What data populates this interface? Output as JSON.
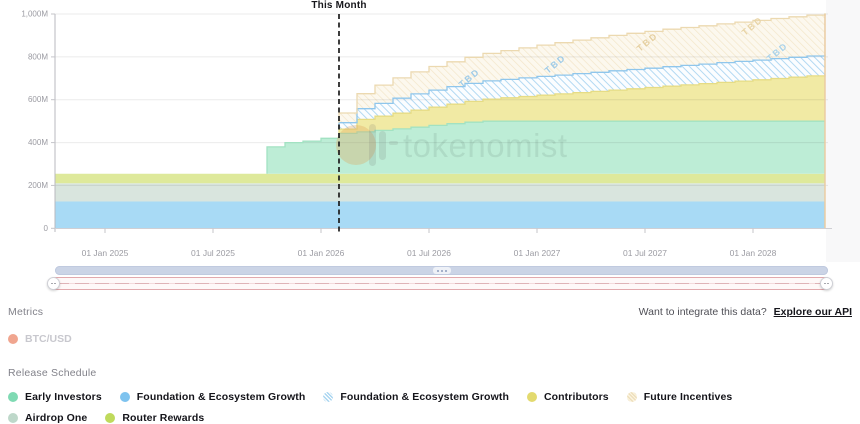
{
  "chart": {
    "this_month_label": "This Month",
    "watermark": "tokenomist",
    "y_ticks": [
      {
        "value": 1000,
        "label": "1,000M"
      },
      {
        "value": 800,
        "label": "800M"
      },
      {
        "value": 600,
        "label": "600M"
      },
      {
        "value": 400,
        "label": "400M"
      },
      {
        "value": 200,
        "label": "200M"
      },
      {
        "value": 0,
        "label": "0"
      }
    ],
    "x_ticks": [
      {
        "label": "01 Jan 2025",
        "month_index": 3
      },
      {
        "label": "01 Jul 2025",
        "month_index": 9
      },
      {
        "label": "01 Jan 2026",
        "month_index": 15
      },
      {
        "label": "01 Jul 2026",
        "month_index": 21
      },
      {
        "label": "01 Jan 2027",
        "month_index": 27
      },
      {
        "label": "01 Jul 2027",
        "month_index": 33
      },
      {
        "label": "01 Jan 2028",
        "month_index": 39
      }
    ]
  },
  "chart_data": {
    "type": "area",
    "stacked": true,
    "interpolation": "step-after",
    "title": "Release Schedule",
    "x_unit": "month",
    "x_start": "2024-10",
    "x_end": "2028-05",
    "this_month": "2026-02",
    "this_month_index": 16,
    "ylim": [
      0,
      1000
    ],
    "y_unit": "M tokens",
    "grid": true,
    "annotation_text": "TBD",
    "series": [
      {
        "name": "Foundation & Ecosystem Growth",
        "style": "solid",
        "fill": "#a8daf5",
        "stroke": null,
        "values": [
          125,
          125,
          125,
          125,
          125,
          125,
          125,
          125,
          125,
          125,
          125,
          125,
          125,
          125,
          125,
          125,
          125,
          125,
          125,
          125,
          125,
          125,
          125,
          125,
          125,
          125,
          125,
          125,
          125,
          125,
          125,
          125,
          125,
          125,
          125,
          125,
          125,
          125,
          125,
          125,
          125,
          125,
          125,
          125
        ]
      },
      {
        "name": "Airdrop One",
        "style": "solid",
        "fill": "#d9e5de",
        "stroke": null,
        "values": [
          85,
          85,
          85,
          85,
          85,
          85,
          85,
          85,
          85,
          85,
          85,
          85,
          85,
          85,
          85,
          85,
          85,
          85,
          85,
          85,
          85,
          85,
          85,
          85,
          85,
          85,
          85,
          85,
          85,
          85,
          85,
          85,
          85,
          85,
          85,
          85,
          85,
          85,
          85,
          85,
          85,
          85,
          85,
          85
        ]
      },
      {
        "name": "Router Rewards",
        "style": "solid",
        "fill": "#dee99b",
        "stroke": null,
        "values": [
          45,
          45,
          45,
          45,
          45,
          45,
          45,
          45,
          45,
          45,
          45,
          45,
          45,
          45,
          45,
          45,
          45,
          45,
          45,
          45,
          45,
          45,
          45,
          45,
          45,
          45,
          45,
          45,
          45,
          45,
          45,
          45,
          45,
          45,
          45,
          45,
          45,
          45,
          45,
          45,
          45,
          45,
          45,
          45
        ]
      },
      {
        "name": "Early Investors",
        "style": "solid",
        "fill": "#bdedd6",
        "stroke": "#a2e2c2",
        "values": [
          0,
          0,
          0,
          0,
          0,
          0,
          0,
          0,
          0,
          0,
          0,
          0,
          125,
          145,
          152,
          165,
          188,
          195,
          202,
          209,
          217,
          225,
          233,
          240,
          245,
          245,
          245,
          245,
          245,
          245,
          245,
          245,
          245,
          245,
          245,
          245,
          245,
          245,
          245,
          245,
          245,
          245,
          245,
          245
        ]
      },
      {
        "name": "Contributors",
        "style": "solid",
        "fill": "#f1eaa4",
        "stroke": "#e6dc85",
        "values": [
          0,
          0,
          0,
          0,
          0,
          0,
          0,
          0,
          0,
          0,
          0,
          0,
          0,
          0,
          0,
          0,
          20,
          58,
          66,
          73,
          79,
          85,
          91,
          97,
          103,
          109,
          115,
          121,
          127,
          133,
          139,
          145,
          151,
          157,
          163,
          169,
          175,
          181,
          187,
          193,
          199,
          205,
          211,
          217
        ]
      },
      {
        "name": "Foundation & Ecosystem Growth",
        "style": "hatched",
        "annotation": "TBD",
        "fill": "pattern-blue",
        "stroke": "#8fc6ec",
        "values": [
          0,
          0,
          0,
          0,
          0,
          0,
          0,
          0,
          0,
          0,
          0,
          0,
          0,
          0,
          0,
          0,
          30,
          50,
          60,
          70,
          76,
          80,
          82,
          84,
          85,
          86,
          87,
          88,
          88,
          89,
          89,
          90,
          90,
          90,
          91,
          91,
          91,
          92,
          92,
          92,
          93,
          93,
          93,
          94
        ]
      },
      {
        "name": "Future Incentives",
        "style": "hatched",
        "annotation": "TBD",
        "fill": "pattern-cream",
        "stroke": "#ecd9b0",
        "values": [
          0,
          0,
          0,
          0,
          0,
          0,
          0,
          0,
          0,
          0,
          0,
          0,
          0,
          0,
          0,
          0,
          45,
          70,
          85,
          95,
          103,
          110,
          116,
          122,
          128,
          134,
          140,
          146,
          151,
          156,
          161,
          165,
          169,
          172,
          175,
          177,
          179,
          181,
          183,
          185,
          187,
          189,
          191,
          193
        ]
      }
    ]
  },
  "metrics": {
    "title": "Metrics",
    "items": [
      {
        "label": "BTC/USD",
        "color": "#f0a58f",
        "enabled": false
      }
    ]
  },
  "api_prompt": {
    "text": "Want to integrate this data?",
    "link": "Explore our API"
  },
  "release_schedule": {
    "title": "Release Schedule",
    "legend_rows": [
      [
        {
          "label": "Early Investors",
          "swatch": "solid",
          "color": "#7fdab3"
        },
        {
          "label": "Foundation & Ecosystem Growth",
          "swatch": "solid",
          "color": "#7ec3ef"
        },
        {
          "label": "Foundation & Ecosystem Growth",
          "swatch": "hatch-blue",
          "color": "#a9d5f0"
        },
        {
          "label": "Contributors",
          "swatch": "solid",
          "color": "#e3da6f"
        },
        {
          "label": "Future Incentives",
          "swatch": "hatch-cream",
          "color": "#eedfbc"
        }
      ],
      [
        {
          "label": "Airdrop One",
          "swatch": "solid",
          "color": "#bed8ca"
        },
        {
          "label": "Router Rewards",
          "swatch": "solid",
          "color": "#bfda5c"
        }
      ]
    ]
  },
  "colors": {
    "gridline": "rgba(0,0,0,0.08)",
    "axis_text": "#9b9ba2",
    "dashed_marker": "#1c1c1c",
    "range_end_line": "#eacba2",
    "navigator_bar": "#cbd4e6",
    "navigator_track_border": "#e2a9ad"
  }
}
